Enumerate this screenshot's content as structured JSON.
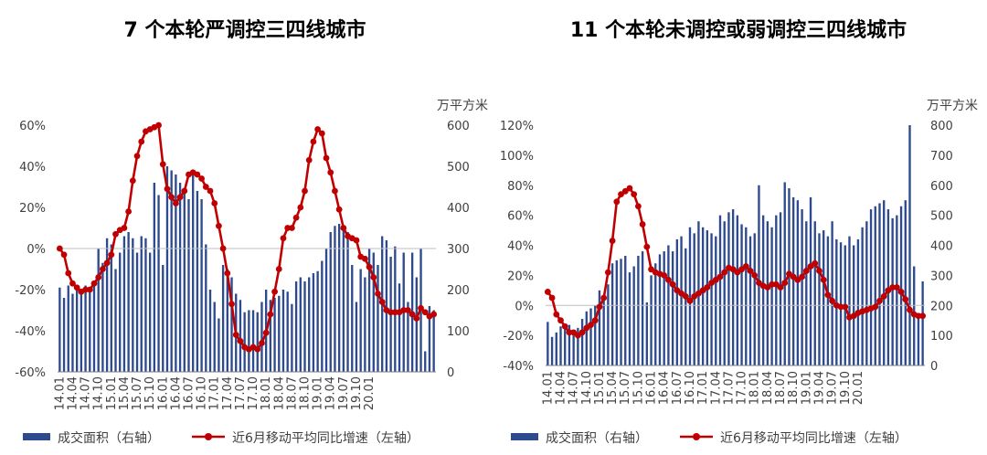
{
  "colors": {
    "bar": "#2E4A8E",
    "line": "#C00000",
    "axis": "#7F7F7F",
    "text": "#404040",
    "title": "#000000"
  },
  "legend": {
    "bar_label": "成交面积（右轴）",
    "line_label": "近6月移动平均同比增速（左轴）"
  },
  "chart_data": [
    {
      "type": "bar",
      "title": "7 个本轮严调控三四线城市",
      "right_axis_unit": "万平方米",
      "left_ticks": [
        "60%",
        "40%",
        "20%",
        "0%",
        "-20%",
        "-40%",
        "-60%"
      ],
      "right_ticks": [
        "600",
        "500",
        "400",
        "300",
        "200",
        "100",
        "0"
      ],
      "x_tick_labels": [
        "14.01",
        "14.04",
        "14.07",
        "14.10",
        "15.01",
        "15.04",
        "15.07",
        "15.10",
        "16.01",
        "16.04",
        "16.07",
        "16.10",
        "17.01",
        "17.04",
        "17.07",
        "17.10",
        "18.01",
        "18.04",
        "18.07",
        "18.10",
        "19.01",
        "19.04",
        "19.07",
        "19.10",
        "20.01"
      ],
      "ylim_left": [
        -0.6,
        0.6
      ],
      "ylim_right": [
        0,
        600
      ],
      "series": [
        {
          "name": "成交面积（右轴）",
          "axis": "right",
          "values": [
            205,
            180,
            210,
            190,
            205,
            195,
            210,
            200,
            220,
            300,
            265,
            325,
            310,
            250,
            290,
            330,
            340,
            325,
            290,
            330,
            325,
            290,
            460,
            430,
            260,
            500,
            490,
            480,
            460,
            440,
            420,
            490,
            440,
            420,
            310,
            200,
            170,
            130,
            260,
            250,
            230,
            190,
            175,
            145,
            150,
            150,
            145,
            170,
            200,
            175,
            180,
            185,
            200,
            195,
            165,
            220,
            230,
            220,
            230,
            240,
            245,
            270,
            300,
            340,
            355,
            360,
            355,
            340,
            260,
            170,
            250,
            230,
            300,
            290,
            260,
            330,
            320,
            280,
            305,
            215,
            290,
            170,
            290,
            230,
            300,
            50,
            160,
            150
          ]
        },
        {
          "name": "近6月移动平均同比增速（左轴）",
          "axis": "left",
          "values": [
            0.0,
            -0.03,
            -0.12,
            -0.17,
            -0.19,
            -0.21,
            -0.2,
            -0.2,
            -0.17,
            -0.14,
            -0.1,
            -0.07,
            -0.03,
            0.07,
            0.09,
            0.1,
            0.18,
            0.33,
            0.45,
            0.52,
            0.57,
            0.58,
            0.59,
            0.6,
            0.41,
            0.29,
            0.25,
            0.22,
            0.25,
            0.28,
            0.36,
            0.37,
            0.36,
            0.34,
            0.3,
            0.28,
            0.22,
            0.11,
            0.0,
            -0.12,
            -0.27,
            -0.42,
            -0.45,
            -0.48,
            -0.49,
            -0.48,
            -0.49,
            -0.46,
            -0.41,
            -0.32,
            -0.21,
            -0.1,
            0.05,
            0.1,
            0.1,
            0.15,
            0.2,
            0.28,
            0.43,
            0.52,
            0.58,
            0.56,
            0.44,
            0.37,
            0.28,
            0.19,
            0.1,
            0.06,
            0.05,
            0.04,
            -0.04,
            -0.05,
            -0.09,
            -0.14,
            -0.22,
            -0.26,
            -0.3,
            -0.31,
            -0.31,
            -0.31,
            -0.3,
            -0.3,
            -0.32,
            -0.34,
            -0.29,
            -0.31,
            -0.33,
            -0.32
          ]
        }
      ]
    },
    {
      "type": "bar",
      "title": "11 个本轮未调控或弱调控三四线城市",
      "right_axis_unit": "万平方米",
      "left_ticks": [
        "120%",
        "100%",
        "80%",
        "60%",
        "40%",
        "20%",
        "0%",
        "-20%",
        "-40%"
      ],
      "right_ticks": [
        "800",
        "700",
        "600",
        "500",
        "400",
        "300",
        "200",
        "100",
        "0"
      ],
      "x_tick_labels": [
        "14.01",
        "14.04",
        "14.07",
        "14.10",
        "15.01",
        "15.04",
        "15.07",
        "15.10",
        "16.01",
        "16.04",
        "16.07",
        "16.10",
        "17.01",
        "17.04",
        "17.07",
        "17.10",
        "18.01",
        "18.04",
        "18.07",
        "18.10",
        "19.01",
        "19.04",
        "19.07",
        "19.10",
        "20.01"
      ],
      "ylim_left": [
        -0.4,
        1.2
      ],
      "ylim_right": [
        0,
        800
      ],
      "series": [
        {
          "name": "成交面积（右轴）",
          "axis": "right",
          "values": [
            145,
            95,
            110,
            130,
            130,
            135,
            110,
            125,
            155,
            180,
            190,
            200,
            250,
            220,
            270,
            340,
            350,
            355,
            365,
            310,
            330,
            365,
            380,
            210,
            300,
            340,
            370,
            380,
            400,
            380,
            420,
            430,
            390,
            460,
            440,
            480,
            460,
            450,
            440,
            430,
            500,
            480,
            510,
            520,
            500,
            470,
            460,
            430,
            440,
            600,
            500,
            480,
            460,
            500,
            510,
            610,
            590,
            560,
            550,
            520,
            480,
            560,
            480,
            440,
            450,
            430,
            480,
            420,
            410,
            400,
            430,
            400,
            420,
            460,
            480,
            520,
            530,
            540,
            550,
            520,
            490,
            500,
            530,
            550,
            800,
            330,
            170,
            280
          ]
        },
        {
          "name": "近6月移动平均同比增速（左轴）",
          "axis": "left",
          "values": [
            0.09,
            0.05,
            -0.06,
            -0.1,
            -0.14,
            -0.18,
            -0.18,
            -0.2,
            -0.18,
            -0.15,
            -0.13,
            -0.1,
            -0.01,
            0.05,
            0.22,
            0.43,
            0.69,
            0.74,
            0.76,
            0.78,
            0.74,
            0.66,
            0.54,
            0.39,
            0.24,
            0.22,
            0.21,
            0.2,
            0.17,
            0.14,
            0.1,
            0.08,
            0.06,
            0.03,
            0.06,
            0.08,
            0.1,
            0.12,
            0.15,
            0.17,
            0.19,
            0.22,
            0.25,
            0.24,
            0.22,
            0.24,
            0.26,
            0.23,
            0.2,
            0.15,
            0.13,
            0.12,
            0.14,
            0.14,
            0.12,
            0.15,
            0.21,
            0.19,
            0.17,
            0.19,
            0.23,
            0.26,
            0.28,
            0.23,
            0.17,
            0.07,
            0.03,
            0.0,
            -0.01,
            -0.01,
            -0.08,
            -0.07,
            -0.05,
            -0.04,
            -0.03,
            -0.02,
            -0.01,
            0.03,
            0.06,
            0.1,
            0.12,
            0.12,
            0.09,
            0.04,
            -0.03,
            -0.06,
            -0.07,
            -0.07
          ]
        }
      ]
    }
  ]
}
